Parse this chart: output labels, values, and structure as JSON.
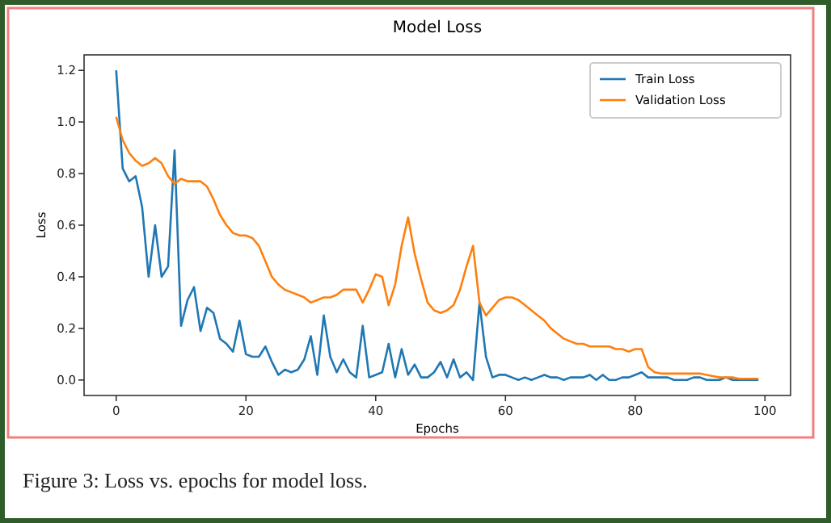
{
  "chart_data": {
    "type": "line",
    "title": "Model Loss",
    "xlabel": "Epochs",
    "ylabel": "Loss",
    "x": [
      0,
      1,
      2,
      3,
      4,
      5,
      6,
      7,
      8,
      9,
      10,
      11,
      12,
      13,
      14,
      15,
      16,
      17,
      18,
      19,
      20,
      21,
      22,
      23,
      24,
      25,
      26,
      27,
      28,
      29,
      30,
      31,
      32,
      33,
      34,
      35,
      36,
      37,
      38,
      39,
      40,
      41,
      42,
      43,
      44,
      45,
      46,
      47,
      48,
      49,
      50,
      51,
      52,
      53,
      54,
      55,
      56,
      57,
      58,
      59,
      60,
      61,
      62,
      63,
      64,
      65,
      66,
      67,
      68,
      69,
      70,
      71,
      72,
      73,
      74,
      75,
      76,
      77,
      78,
      79,
      80,
      81,
      82,
      83,
      84,
      85,
      86,
      87,
      88,
      89,
      90,
      91,
      92,
      93,
      94,
      95,
      96,
      97,
      98,
      99
    ],
    "series": [
      {
        "name": "Train Loss",
        "color": "#1f77b4",
        "values": [
          1.2,
          0.82,
          0.77,
          0.79,
          0.67,
          0.4,
          0.6,
          0.4,
          0.44,
          0.89,
          0.21,
          0.31,
          0.36,
          0.19,
          0.28,
          0.26,
          0.16,
          0.14,
          0.11,
          0.23,
          0.1,
          0.09,
          0.09,
          0.13,
          0.07,
          0.02,
          0.04,
          0.03,
          0.04,
          0.08,
          0.17,
          0.02,
          0.25,
          0.09,
          0.03,
          0.08,
          0.03,
          0.01,
          0.21,
          0.01,
          0.02,
          0.03,
          0.14,
          0.01,
          0.12,
          0.02,
          0.06,
          0.01,
          0.01,
          0.03,
          0.07,
          0.01,
          0.08,
          0.01,
          0.03,
          0.0,
          0.3,
          0.09,
          0.01,
          0.02,
          0.02,
          0.01,
          0.0,
          0.01,
          0.0,
          0.01,
          0.02,
          0.01,
          0.01,
          0.0,
          0.01,
          0.01,
          0.01,
          0.02,
          0.0,
          0.02,
          0.0,
          0.0,
          0.01,
          0.01,
          0.02,
          0.03,
          0.01,
          0.01,
          0.01,
          0.01,
          0.0,
          0.0,
          0.0,
          0.01,
          0.01,
          0.0,
          0.0,
          0.0,
          0.01,
          0.0,
          0.0,
          0.0,
          0.0,
          0.0
        ]
      },
      {
        "name": "Validation Loss",
        "color": "#ff7f0e",
        "values": [
          1.02,
          0.93,
          0.88,
          0.85,
          0.83,
          0.84,
          0.86,
          0.84,
          0.79,
          0.76,
          0.78,
          0.77,
          0.77,
          0.77,
          0.75,
          0.7,
          0.64,
          0.6,
          0.57,
          0.56,
          0.56,
          0.55,
          0.52,
          0.46,
          0.4,
          0.37,
          0.35,
          0.34,
          0.33,
          0.32,
          0.3,
          0.31,
          0.32,
          0.32,
          0.33,
          0.35,
          0.35,
          0.35,
          0.3,
          0.35,
          0.41,
          0.4,
          0.29,
          0.37,
          0.52,
          0.63,
          0.49,
          0.39,
          0.3,
          0.27,
          0.26,
          0.27,
          0.29,
          0.35,
          0.44,
          0.52,
          0.3,
          0.25,
          0.28,
          0.31,
          0.32,
          0.32,
          0.31,
          0.29,
          0.27,
          0.25,
          0.23,
          0.2,
          0.18,
          0.16,
          0.15,
          0.14,
          0.14,
          0.13,
          0.13,
          0.13,
          0.13,
          0.12,
          0.12,
          0.11,
          0.12,
          0.12,
          0.05,
          0.03,
          0.025,
          0.025,
          0.025,
          0.025,
          0.025,
          0.025,
          0.025,
          0.02,
          0.015,
          0.01,
          0.01,
          0.01,
          0.005,
          0.005,
          0.005,
          0.005
        ]
      }
    ],
    "xlim": [
      -4.95,
      103.95
    ],
    "xticks": [
      0,
      20,
      40,
      60,
      80,
      100
    ],
    "ylim": [
      -0.06,
      1.26
    ],
    "yticks": [
      {
        "value": 0,
        "label": "0.0"
      },
      {
        "value": 0.2,
        "label": "0.2"
      },
      {
        "value": 0.4,
        "label": "0.4"
      },
      {
        "value": 0.6,
        "label": "0.6"
      },
      {
        "value": 0.8,
        "label": "0.8"
      },
      {
        "value": 1.0,
        "label": "1.0"
      },
      {
        "value": 1.2,
        "label": "1.2"
      }
    ],
    "legend": "top right",
    "grid": false,
    "marker": "none",
    "line_style": "solid",
    "annotations": [
      "Figure 3: Loss vs. epochs for model loss."
    ]
  }
}
